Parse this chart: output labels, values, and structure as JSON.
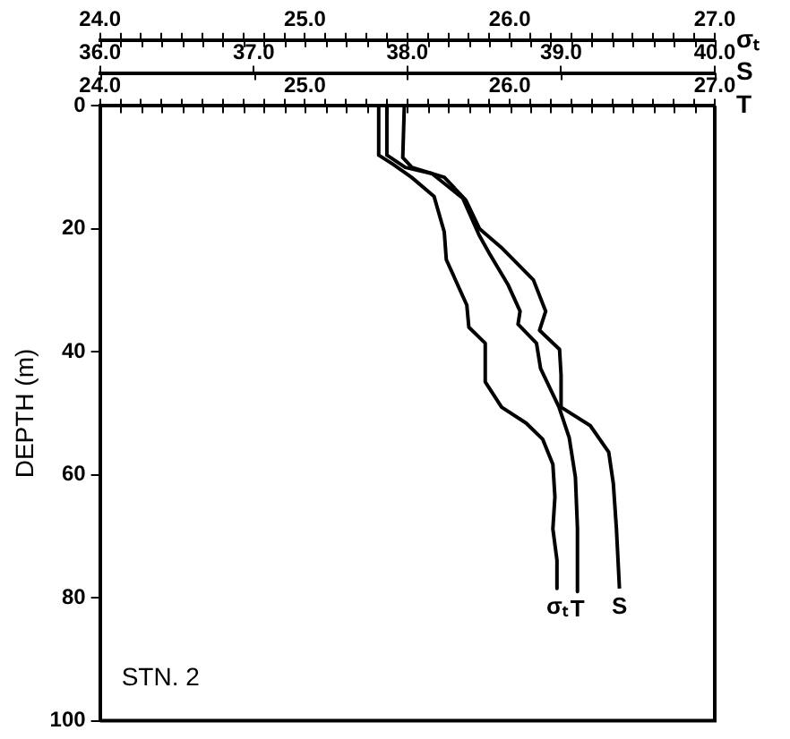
{
  "chart_data": {
    "type": "line",
    "ylabel": "DEPTH (m)",
    "xlabel": "T",
    "x2label": "S",
    "annotations": [
      "STN. 2",
      "σₜ"
    ],
    "ylim": [
      100,
      0
    ],
    "yticks": [
      0,
      20,
      40,
      60,
      80,
      100
    ],
    "xlim": [
      24,
      27
    ],
    "xticks": [
      {
        "value": 24,
        "label": "24.0"
      },
      {
        "value": 24.1,
        "label": null
      },
      {
        "value": 24.2,
        "label": null
      },
      {
        "value": 24.3,
        "label": null
      },
      {
        "value": 24.4,
        "label": null
      },
      {
        "value": 24.5,
        "label": null
      },
      {
        "value": 24.6,
        "label": null
      },
      {
        "value": 24.7,
        "label": null
      },
      {
        "value": 24.8,
        "label": null
      },
      {
        "value": 24.9,
        "label": null
      },
      {
        "value": 25,
        "label": "25.0"
      },
      {
        "value": 25.1,
        "label": null
      },
      {
        "value": 25.2,
        "label": null
      },
      {
        "value": 25.3,
        "label": null
      },
      {
        "value": 25.4,
        "label": null
      },
      {
        "value": 25.5,
        "label": null
      },
      {
        "value": 25.6,
        "label": null
      },
      {
        "value": 25.7,
        "label": null
      },
      {
        "value": 25.8,
        "label": null
      },
      {
        "value": 25.9,
        "label": null
      },
      {
        "value": 26,
        "label": "26.0"
      },
      {
        "value": 26.1,
        "label": null
      },
      {
        "value": 26.2,
        "label": null
      },
      {
        "value": 26.3,
        "label": null
      },
      {
        "value": 26.4,
        "label": null
      },
      {
        "value": 26.5,
        "label": null
      },
      {
        "value": 26.6,
        "label": null
      },
      {
        "value": 26.7,
        "label": null
      },
      {
        "value": 26.8,
        "label": null
      },
      {
        "value": 26.9,
        "label": null
      },
      {
        "value": 27,
        "label": "27.0"
      }
    ],
    "x2lim": [
      36,
      40
    ],
    "x2ticks": [
      {
        "value": 36,
        "label": "36.0"
      },
      {
        "value": 37,
        "label": "37.0"
      },
      {
        "value": 38,
        "label": "38.0"
      },
      {
        "value": 39,
        "label": "39.0"
      },
      {
        "value": 40,
        "label": "40.0"
      }
    ],
    "marker": "none",
    "line_style": "solid",
    "series": [
      {
        "name": "σₜ",
        "color": "#000000",
        "x": [
          25.36,
          25.36,
          25.43,
          25.52,
          25.63,
          25.68,
          25.69,
          25.79,
          25.8,
          25.88,
          25.88,
          25.96,
          26.08,
          26.16,
          26.21,
          26.22,
          26.21,
          26.23,
          26.23
        ],
        "values": [
          0,
          8,
          9.5,
          11.6,
          14.7,
          20.5,
          25,
          32.4,
          36,
          38.6,
          44.9,
          49,
          51.6,
          54.2,
          58.3,
          63.6,
          68.8,
          73.9,
          78.5
        ]
      },
      {
        "name": "T",
        "color": "#000000",
        "x": [
          25.4,
          25.4,
          25.49,
          25.62,
          25.77,
          25.85,
          25.9,
          25.99,
          26.05,
          26.04,
          26.13,
          26.15,
          26.24,
          26.29,
          26.32,
          26.33,
          26.33
        ],
        "values": [
          0,
          8,
          10,
          11,
          15,
          21,
          24,
          29,
          33.4,
          35.5,
          38.6,
          42.7,
          49,
          54,
          60.4,
          68.7,
          79
        ]
      },
      {
        "name": "S",
        "color": "#000000",
        "axis": "x2",
        "x": [
          37.98,
          37.97,
          38.03,
          38.24,
          38.38,
          38.47,
          38.61,
          38.82,
          38.9,
          38.86,
          38.99,
          39,
          39,
          39.19,
          39.31,
          39.34,
          39.36,
          39.38
        ],
        "values": [
          0,
          8.4,
          10,
          11.6,
          15.3,
          20,
          23,
          28.3,
          33.4,
          36.5,
          39.6,
          43.8,
          49,
          52,
          56.3,
          61.4,
          68.7,
          78.5
        ]
      }
    ]
  }
}
